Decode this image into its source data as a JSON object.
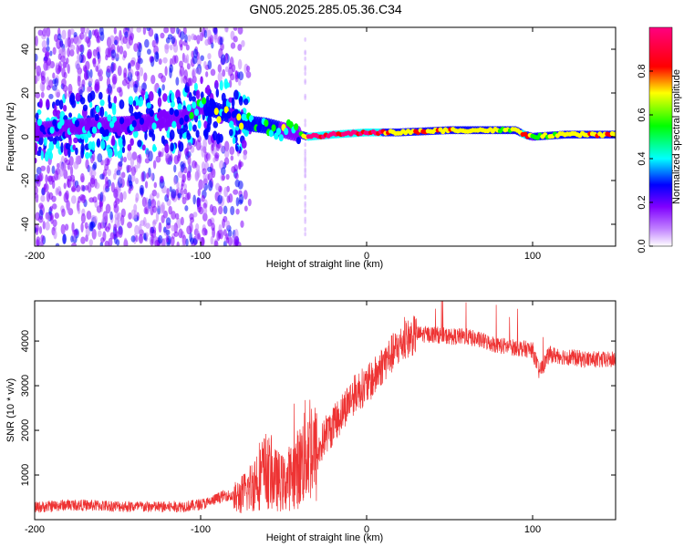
{
  "title": "GN05.2025.285.05.36.C34",
  "chart_data": [
    {
      "type": "heatmap",
      "name": "spectrogram",
      "xlabel": "Height of straight line (km)",
      "ylabel": "Frequency (Hz)",
      "xlim": [
        -200,
        150
      ],
      "ylim": [
        -50,
        50
      ],
      "xticks": [
        -200,
        -100,
        0,
        100
      ],
      "yticks": [
        -40,
        -20,
        0,
        20,
        40
      ],
      "colorbar": {
        "label": "Normalized spectral amplitude",
        "range": [
          0,
          1
        ],
        "ticks": [
          0.0,
          0.2,
          0.4,
          0.6,
          0.8
        ],
        "colors": [
          "#ffffff",
          "#8000ff",
          "#0000ff",
          "#00ffff",
          "#00ff00",
          "#ffff00",
          "#ff0000",
          "#ff0080"
        ]
      },
      "ridge": {
        "x": [
          -200,
          -170,
          -140,
          -110,
          -100,
          -90,
          -80,
          -70,
          -60,
          -50,
          -40,
          -35,
          -20,
          0,
          20,
          50,
          90,
          95,
          100,
          120,
          150
        ],
        "freq": [
          3,
          5,
          6,
          9,
          14,
          12,
          9,
          6,
          5,
          3,
          1,
          0,
          1,
          2,
          2,
          3,
          3,
          1,
          0,
          1,
          1
        ],
        "amplitude": [
          0.25,
          0.3,
          0.3,
          0.3,
          0.5,
          0.55,
          0.5,
          0.55,
          0.55,
          0.5,
          0.45,
          0.9,
          0.9,
          0.9,
          0.7,
          0.7,
          0.6,
          0.9,
          0.5,
          0.7,
          0.7
        ]
      }
    },
    {
      "type": "line",
      "name": "snr",
      "xlabel": "Height of straight line (km)",
      "ylabel": "SNR (10 * v/v)",
      "xlim": [
        -200,
        150
      ],
      "ylim": [
        0,
        4900
      ],
      "xticks": [
        -200,
        -100,
        0,
        100
      ],
      "yticks": [
        1000,
        2000,
        3000,
        4000
      ],
      "color": "#ee3333",
      "series": [
        {
          "name": "SNR",
          "x": [
            -200,
            -180,
            -160,
            -140,
            -120,
            -105,
            -95,
            -90,
            -85,
            -80,
            -75,
            -70,
            -65,
            -60,
            -55,
            -50,
            -45,
            -40,
            -37,
            -34,
            -30,
            -25,
            -20,
            -15,
            -10,
            -5,
            0,
            5,
            10,
            15,
            20,
            25,
            30,
            40,
            50,
            60,
            70,
            80,
            90,
            100,
            104,
            110,
            120,
            130,
            140,
            150
          ],
          "y": [
            220,
            280,
            260,
            240,
            230,
            260,
            330,
            420,
            500,
            460,
            560,
            720,
            1000,
            1100,
            900,
            800,
            1000,
            1200,
            1500,
            1700,
            1400,
            1900,
            2100,
            2400,
            2700,
            2900,
            3000,
            3200,
            3500,
            3700,
            3900,
            4050,
            4150,
            4150,
            4100,
            4100,
            4000,
            3900,
            3850,
            3800,
            3300,
            3700,
            3650,
            3600,
            3580,
            3580
          ]
        }
      ]
    }
  ]
}
